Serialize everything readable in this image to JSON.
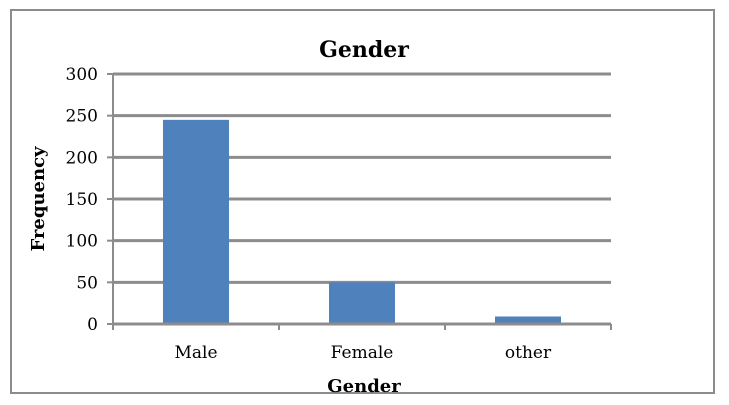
{
  "chart_data": {
    "type": "bar",
    "title": "Gender",
    "xlabel": "Gender",
    "ylabel": "Frequency",
    "categories": [
      "Male",
      "Female",
      "other"
    ],
    "values": [
      245,
      50,
      9
    ],
    "ylim": [
      0,
      300
    ],
    "yticks": [
      0,
      50,
      100,
      150,
      200,
      250,
      300
    ],
    "grid": true,
    "legend": "none",
    "colors": {
      "bar": "#4f81bd",
      "grid": "#8c8c8c",
      "axis": "#8c8c8c",
      "frame": "#8c8c8c"
    }
  }
}
